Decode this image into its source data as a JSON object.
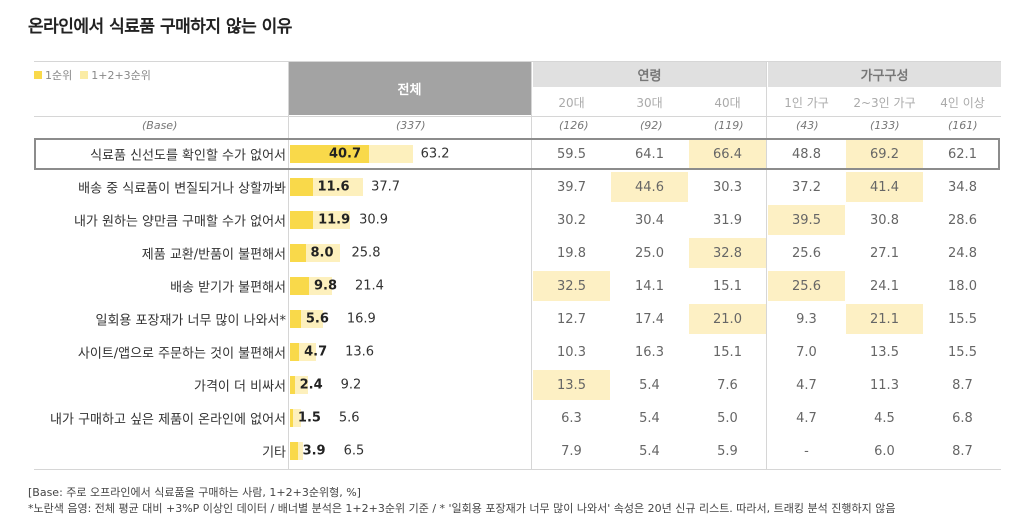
{
  "title": "온라인에서 식료품 구매하지 않는 이유",
  "legend": {
    "top": "1순위",
    "all": "1+2+3순위"
  },
  "header": {
    "total": "전체",
    "groups": [
      {
        "label": "연령",
        "subs": [
          "20대",
          "30대",
          "40대"
        ]
      },
      {
        "label": "가구구성",
        "subs": [
          "1인 가구",
          "2~3인 가구",
          "4인 이상"
        ]
      }
    ]
  },
  "base_row": {
    "label": "(Base)",
    "total": "(337)",
    "values": [
      "(126)",
      "(92)",
      "(119)",
      "(43)",
      "(133)",
      "(161)"
    ]
  },
  "colors": {
    "top_bar": "#f9d94a",
    "all_bar": "#fdf0bd",
    "highlight": "#fdf0c4",
    "header_gray": "#a3a3a3"
  },
  "chart_data": {
    "type": "bar",
    "title": "온라인에서 식료품 구매하지 않는 이유",
    "unit": "%",
    "series_names": [
      "1순위",
      "1+2+3순위"
    ],
    "xlim": [
      0,
      100
    ],
    "columns": [
      "20대",
      "30대",
      "40대",
      "1인 가구",
      "2~3인 가구",
      "4인 이상"
    ],
    "rows": [
      {
        "label": "식료품 신선도를 확인할 수가 없어서",
        "top": 40.7,
        "all": 63.2,
        "cells": [
          "59.5",
          "64.1",
          "66.4",
          "48.8",
          "69.2",
          "62.1"
        ],
        "hl": [
          2,
          4
        ],
        "outlined": true
      },
      {
        "label": "배송 중 식료품이 변질되거나 상할까봐",
        "top": 11.6,
        "all": 37.7,
        "cells": [
          "39.7",
          "44.6",
          "30.3",
          "37.2",
          "41.4",
          "34.8"
        ],
        "hl": [
          1,
          4
        ]
      },
      {
        "label": "내가 원하는 양만큼 구매할 수가 없어서",
        "top": 11.9,
        "all": 30.9,
        "cells": [
          "30.2",
          "30.4",
          "31.9",
          "39.5",
          "30.8",
          "28.6"
        ],
        "hl": [
          3
        ]
      },
      {
        "label": "제품 교환/반품이 불편해서",
        "top": 8.0,
        "all": 25.8,
        "cells": [
          "19.8",
          "25.0",
          "32.8",
          "25.6",
          "27.1",
          "24.8"
        ],
        "hl": [
          2
        ]
      },
      {
        "label": "배송 받기가 불편해서",
        "top": 9.8,
        "all": 21.4,
        "cells": [
          "32.5",
          "14.1",
          "15.1",
          "25.6",
          "24.1",
          "18.0"
        ],
        "hl": [
          0,
          3
        ]
      },
      {
        "label": "일회용 포장재가 너무 많이 나와서*",
        "top": 5.6,
        "all": 16.9,
        "cells": [
          "12.7",
          "17.4",
          "21.0",
          "9.3",
          "21.1",
          "15.5"
        ],
        "hl": [
          2,
          4
        ]
      },
      {
        "label": "사이트/앱으로 주문하는 것이 불편해서",
        "top": 4.7,
        "all": 13.6,
        "cells": [
          "10.3",
          "16.3",
          "15.1",
          "7.0",
          "13.5",
          "15.5"
        ],
        "hl": []
      },
      {
        "label": "가격이 더 비싸서",
        "top": 2.4,
        "all": 9.2,
        "cells": [
          "13.5",
          "5.4",
          "7.6",
          "4.7",
          "11.3",
          "8.7"
        ],
        "hl": [
          0
        ]
      },
      {
        "label": "내가 구매하고 싶은 제품이 온라인에 없어서",
        "top": 1.5,
        "all": 5.6,
        "cells": [
          "6.3",
          "5.4",
          "5.0",
          "4.7",
          "4.5",
          "6.8"
        ],
        "hl": []
      },
      {
        "label": "기타",
        "top": 3.9,
        "all": 6.5,
        "cells": [
          "7.9",
          "5.4",
          "5.9",
          "-",
          "6.0",
          "8.7"
        ],
        "hl": []
      }
    ]
  },
  "footnotes": [
    "[Base: 주로 오프라인에서 식료품을 구매하는 사람, 1+2+3순위형, %]",
    "*노란색 음영: 전체 평균 대비 +3%P 이상인 데이터 / 배너별 분석은 1+2+3순위 기준 / * '일회용 포장재가 너무 많이 나와서' 속성은 20년 신규 리스트. 따라서, 트래킹 분석 진행하지 않음"
  ]
}
